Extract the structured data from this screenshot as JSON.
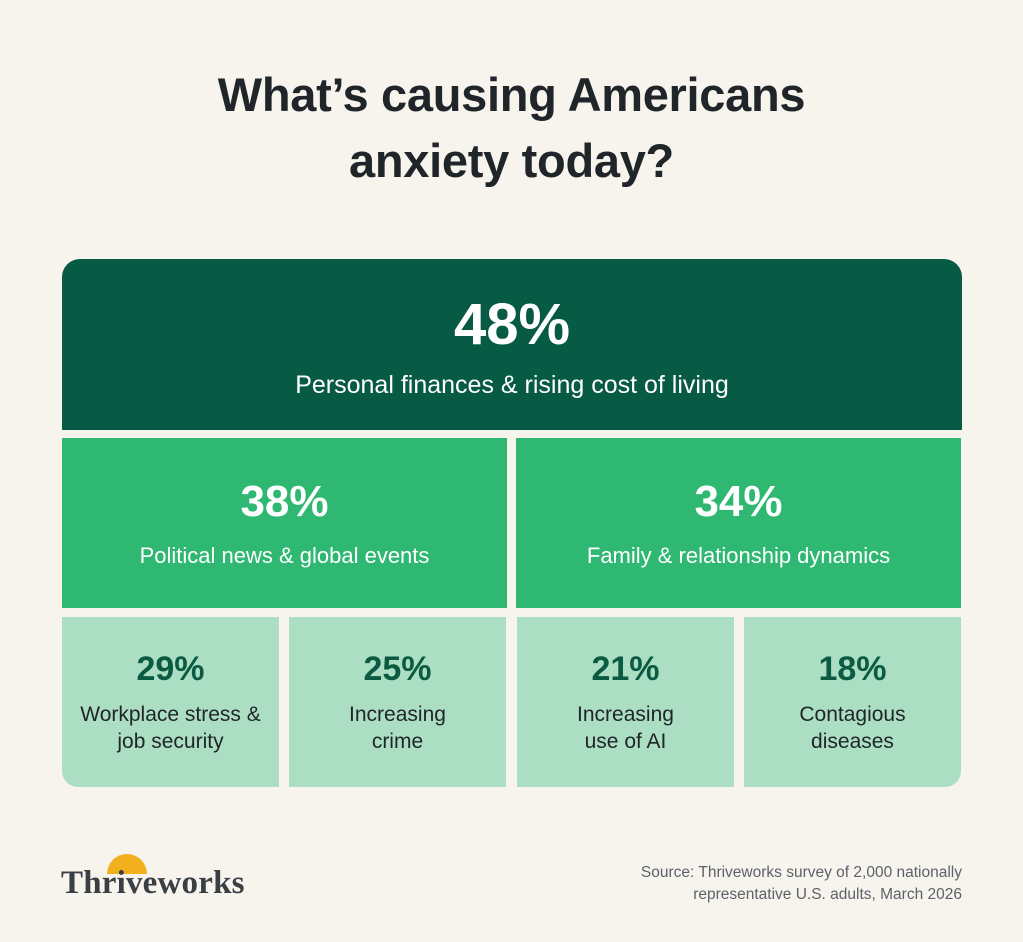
{
  "title": {
    "line1": "What’s causing Americans",
    "line2": "anxiety today?"
  },
  "chart_data": {
    "type": "treemap",
    "title": "What’s causing Americans anxiety today?",
    "categories": [
      "Personal finances & rising cost of living",
      "Political news & global events",
      "Family & relationship dynamics",
      "Workplace stress & job security",
      "Increasing crime",
      "Increasing use of AI",
      "Contagious diseases"
    ],
    "values": [
      48,
      38,
      34,
      29,
      25,
      21,
      18
    ],
    "unit": "%",
    "tiles": [
      {
        "pct": "48%",
        "label": "Personal finances & rising cost of living",
        "color": "#075a43"
      },
      {
        "pct": "38%",
        "label": "Political news & global events",
        "color": "#2eb872"
      },
      {
        "pct": "34%",
        "label": "Family & relationship dynamics",
        "color": "#2eb872"
      },
      {
        "pct": "29%",
        "label_l1": "Workplace stress &",
        "label_l2": "job security",
        "color": "#abdec3"
      },
      {
        "pct": "25%",
        "label_l1": "Increasing",
        "label_l2": "crime",
        "color": "#abdec3"
      },
      {
        "pct": "21%",
        "label_l1": "Increasing",
        "label_l2": "use of AI",
        "color": "#abdec3"
      },
      {
        "pct": "18%",
        "label_l1": "Contagious",
        "label_l2": "diseases",
        "color": "#abdec3"
      }
    ]
  },
  "logo": {
    "text": "Thriveworks",
    "sun_color": "#f2b01e"
  },
  "source": {
    "line1": "Source: Thriveworks survey of 2,000 nationally",
    "line2": "representative U.S. adults, March 2026"
  }
}
